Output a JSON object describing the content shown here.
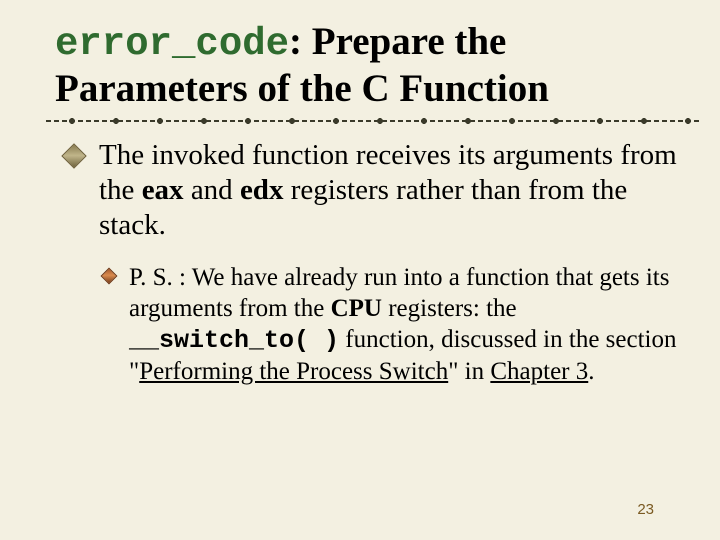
{
  "title": {
    "code": "error_code",
    "rest1": ": Prepare the",
    "rest2": "Parameters of the ",
    "cword": "C",
    "rest3": " Function"
  },
  "bullet1": {
    "pre": "The invoked function receives its arguments from the ",
    "reg1": "eax",
    "mid": " and ",
    "reg2": "edx",
    "post": " registers rather than from the stack."
  },
  "bullet2": {
    "p1": "P. S. : We have already run into a function that gets its arguments from the ",
    "cpu": "CPU",
    "p2": " registers: the ",
    "fn": "__switch_to( )",
    "p3": " function, discussed in the section \"",
    "link1": "Performing the Process Switch",
    "p4": "\" in ",
    "link2": "Chapter 3",
    "p5": "."
  },
  "page": "23",
  "colors": {
    "background": "#f3f0e1",
    "code_green": "#2f6b2f",
    "pagenum": "#7a5a22"
  }
}
